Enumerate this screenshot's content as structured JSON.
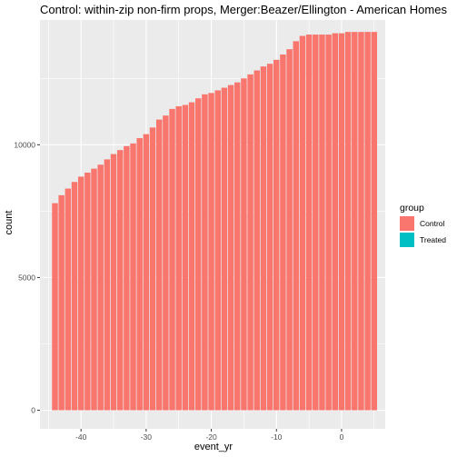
{
  "chart_data": {
    "type": "bar",
    "title": "Control: within-zip non-firm props, Merger:Beazer/Ellington - American Homes",
    "xlabel": "event_yr",
    "ylabel": "count",
    "xlim": [
      -46.3,
      6.7
    ],
    "ylim": [
      -700,
      14700
    ],
    "x_ticks": [
      -40,
      -30,
      -20,
      -10,
      0
    ],
    "x_tick_labels": [
      "-40",
      "-30",
      "-20",
      "-10",
      "0"
    ],
    "y_ticks": [
      0,
      5000,
      10000
    ],
    "y_tick_labels": [
      "0",
      "5000",
      "10000"
    ],
    "grid": true,
    "legend": {
      "title": "group",
      "position": "right",
      "entries": [
        {
          "label": "Control",
          "color": "#F8766D"
        },
        {
          "label": "Treated",
          "color": "#00BFC4"
        }
      ]
    },
    "series": [
      {
        "name": "Control",
        "color": "#F8766D",
        "x": [
          -44,
          -43,
          -42,
          -41,
          -40,
          -39,
          -38,
          -37,
          -36,
          -35,
          -34,
          -33,
          -32,
          -31,
          -30,
          -29,
          -28,
          -27,
          -26,
          -25,
          -24,
          -23,
          -22,
          -21,
          -20,
          -19,
          -18,
          -17,
          -16,
          -15,
          -14,
          -13,
          -12,
          -11,
          -10,
          -9,
          -8,
          -7,
          -6,
          -5,
          -4,
          -3,
          -2,
          -1,
          0,
          1,
          2,
          3,
          4,
          5
        ],
        "values": [
          7800,
          8100,
          8350,
          8600,
          8800,
          8950,
          9100,
          9250,
          9450,
          9650,
          9800,
          9950,
          10050,
          10250,
          10400,
          10650,
          10950,
          11100,
          11350,
          11450,
          11500,
          11600,
          11750,
          11900,
          11950,
          12050,
          12150,
          12250,
          12350,
          12500,
          12650,
          12800,
          12950,
          13050,
          13200,
          13400,
          13600,
          13900,
          14100,
          14150,
          14150,
          14150,
          14150,
          14200,
          14200,
          14250,
          14250,
          14250,
          14250,
          14250
        ]
      },
      {
        "name": "Treated",
        "color": "#00BFC4",
        "x": [],
        "values": []
      }
    ]
  }
}
